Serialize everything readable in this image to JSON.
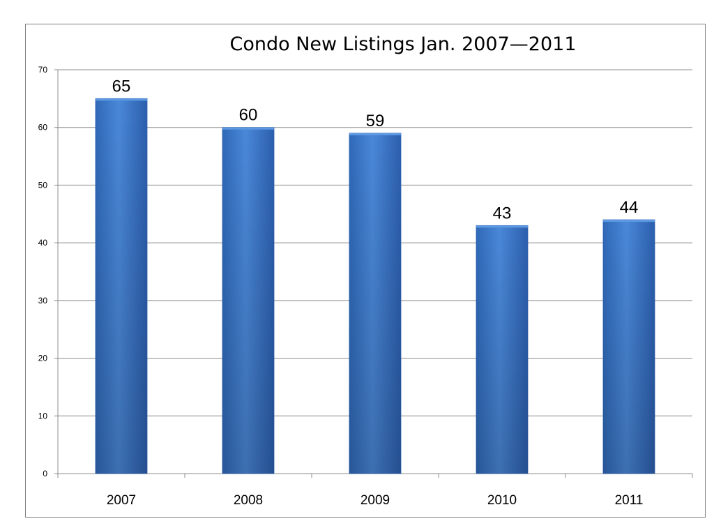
{
  "chart_data": {
    "type": "bar",
    "title": "Condo New Listings Jan. 2007—2011",
    "xlabel": "",
    "ylabel": "",
    "categories": [
      "2007",
      "2008",
      "2009",
      "2010",
      "2011"
    ],
    "values": [
      65,
      60,
      59,
      43,
      44
    ],
    "data_labels": [
      "65",
      "60",
      "59",
      "43",
      "44"
    ],
    "ylim": [
      0,
      70
    ],
    "yticks": [
      "0",
      "10",
      "20",
      "30",
      "40",
      "50",
      "60",
      "70"
    ],
    "grid": true,
    "legend": "none",
    "bar_color": "#3f7fd0",
    "bar_color_dark": "#2c5fae"
  }
}
